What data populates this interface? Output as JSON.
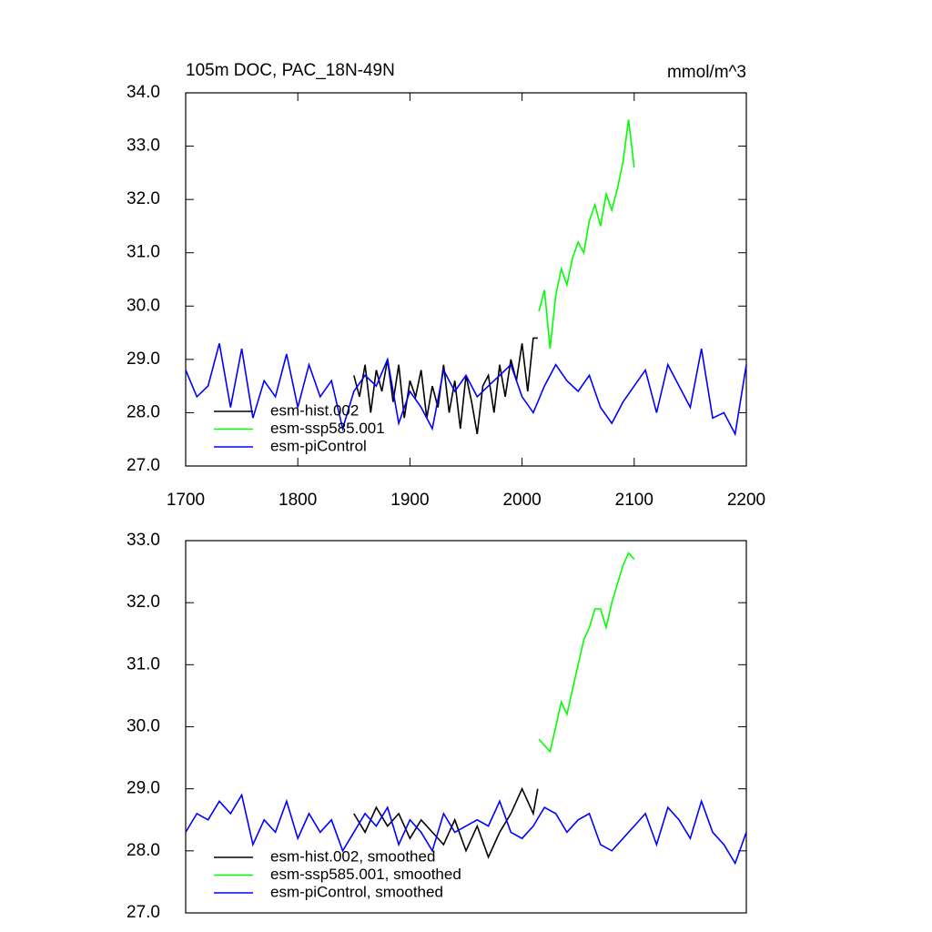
{
  "chart_data": [
    {
      "type": "line",
      "title": "105m DOC, PAC_18N-49N",
      "units": "mmol/m^3",
      "xlim": [
        1700,
        2200
      ],
      "xticks": [
        1700,
        1800,
        1900,
        2000,
        2100,
        2200
      ],
      "ylim": [
        27,
        34
      ],
      "yticks": [
        {
          "value": 27,
          "label": "27.0"
        },
        {
          "value": 28,
          "label": "28.0"
        },
        {
          "value": 29,
          "label": "29.0"
        },
        {
          "value": 30,
          "label": "30.0"
        },
        {
          "value": 31,
          "label": "31.0"
        },
        {
          "value": 32,
          "label": "32.0"
        },
        {
          "value": 33,
          "label": "33.0"
        },
        {
          "value": 34,
          "label": "34.0"
        }
      ],
      "series": [
        {
          "name": "esm-hist.002",
          "color": "#000000",
          "x": [
            1850,
            1855,
            1860,
            1865,
            1870,
            1875,
            1880,
            1885,
            1890,
            1895,
            1900,
            1905,
            1910,
            1915,
            1920,
            1925,
            1930,
            1935,
            1940,
            1945,
            1950,
            1955,
            1960,
            1965,
            1970,
            1975,
            1980,
            1985,
            1990,
            1995,
            2000,
            2005,
            2010,
            2014
          ],
          "values": [
            28.7,
            28.3,
            28.9,
            28.0,
            28.8,
            28.4,
            29.0,
            28.2,
            28.9,
            27.9,
            28.6,
            28.3,
            28.8,
            27.9,
            28.5,
            28.1,
            28.9,
            28.0,
            28.6,
            27.7,
            28.7,
            28.2,
            27.6,
            28.5,
            28.7,
            28.0,
            28.9,
            28.3,
            29.0,
            28.6,
            29.3,
            28.4,
            29.4,
            29.4
          ]
        },
        {
          "name": "esm-ssp585.001",
          "color": "#00ff00",
          "x": [
            2015,
            2020,
            2025,
            2030,
            2035,
            2040,
            2045,
            2050,
            2055,
            2060,
            2065,
            2070,
            2075,
            2080,
            2085,
            2090,
            2095,
            2100
          ],
          "values": [
            29.9,
            30.3,
            29.2,
            30.2,
            30.7,
            30.4,
            30.9,
            31.2,
            31.0,
            31.6,
            31.9,
            31.5,
            32.1,
            31.8,
            32.2,
            32.7,
            33.5,
            32.6
          ]
        },
        {
          "name": "esm-piControl",
          "color": "#0000ff",
          "x": [
            1700,
            1710,
            1720,
            1730,
            1740,
            1750,
            1760,
            1770,
            1780,
            1790,
            1800,
            1810,
            1820,
            1830,
            1840,
            1850,
            1860,
            1870,
            1880,
            1890,
            1900,
            1910,
            1920,
            1930,
            1940,
            1950,
            1960,
            1970,
            1980,
            1990,
            2000,
            2010,
            2020,
            2030,
            2040,
            2050,
            2060,
            2070,
            2080,
            2090,
            2100,
            2110,
            2120,
            2130,
            2140,
            2150,
            2160,
            2170,
            2180,
            2190,
            2200
          ],
          "values": [
            28.8,
            28.3,
            28.5,
            29.3,
            28.1,
            29.2,
            27.9,
            28.6,
            28.3,
            29.1,
            28.1,
            28.9,
            28.3,
            28.6,
            27.7,
            28.4,
            28.7,
            28.5,
            29.0,
            27.8,
            28.4,
            28.1,
            27.7,
            28.8,
            28.4,
            28.7,
            28.3,
            28.5,
            28.7,
            28.9,
            28.3,
            28.0,
            28.5,
            28.9,
            28.6,
            28.4,
            28.7,
            28.1,
            27.8,
            28.2,
            28.5,
            28.8,
            28.0,
            28.9,
            28.5,
            28.1,
            29.2,
            27.9,
            28.0,
            27.6,
            28.9
          ]
        }
      ]
    },
    {
      "type": "line",
      "xlim": [
        1700,
        2200
      ],
      "ylim": [
        27,
        33
      ],
      "yticks": [
        {
          "value": 27,
          "label": "27.0"
        },
        {
          "value": 28,
          "label": "28.0"
        },
        {
          "value": 29,
          "label": "29.0"
        },
        {
          "value": 30,
          "label": "30.0"
        },
        {
          "value": 31,
          "label": "31.0"
        },
        {
          "value": 32,
          "label": "32.0"
        },
        {
          "value": 33,
          "label": "33.0"
        }
      ],
      "series": [
        {
          "name": "esm-hist.002, smoothed",
          "color": "#000000",
          "x": [
            1850,
            1860,
            1870,
            1880,
            1890,
            1900,
            1910,
            1920,
            1930,
            1940,
            1950,
            1960,
            1970,
            1980,
            1990,
            2000,
            2010,
            2014
          ],
          "values": [
            28.6,
            28.3,
            28.7,
            28.4,
            28.6,
            28.2,
            28.5,
            28.3,
            28.1,
            28.5,
            28.0,
            28.4,
            27.9,
            28.3,
            28.6,
            29.0,
            28.6,
            29.0
          ]
        },
        {
          "name": "esm-ssp585.001, smoothed",
          "color": "#00ff00",
          "x": [
            2015,
            2020,
            2025,
            2030,
            2035,
            2040,
            2045,
            2050,
            2055,
            2060,
            2065,
            2070,
            2075,
            2080,
            2085,
            2090,
            2095,
            2100
          ],
          "values": [
            29.8,
            29.7,
            29.6,
            30.0,
            30.4,
            30.2,
            30.6,
            31.0,
            31.4,
            31.6,
            31.9,
            31.9,
            31.6,
            32.0,
            32.3,
            32.6,
            32.8,
            32.7
          ]
        },
        {
          "name": "esm-piControl, smoothed",
          "color": "#0000ff",
          "x": [
            1700,
            1710,
            1720,
            1730,
            1740,
            1750,
            1760,
            1770,
            1780,
            1790,
            1800,
            1810,
            1820,
            1830,
            1840,
            1850,
            1860,
            1870,
            1880,
            1890,
            1900,
            1910,
            1920,
            1930,
            1940,
            1950,
            1960,
            1970,
            1980,
            1990,
            2000,
            2010,
            2020,
            2030,
            2040,
            2050,
            2060,
            2070,
            2080,
            2090,
            2100,
            2110,
            2120,
            2130,
            2140,
            2150,
            2160,
            2170,
            2180,
            2190,
            2200
          ],
          "values": [
            28.3,
            28.6,
            28.5,
            28.8,
            28.6,
            28.9,
            28.1,
            28.5,
            28.3,
            28.8,
            28.2,
            28.6,
            28.3,
            28.5,
            28.0,
            28.3,
            28.6,
            28.4,
            28.7,
            28.1,
            28.5,
            28.3,
            28.0,
            28.6,
            28.3,
            28.4,
            28.5,
            28.4,
            28.8,
            28.3,
            28.2,
            28.4,
            28.7,
            28.6,
            28.3,
            28.5,
            28.6,
            28.1,
            28.0,
            28.2,
            28.4,
            28.6,
            28.1,
            28.7,
            28.5,
            28.2,
            28.8,
            28.3,
            28.1,
            27.8,
            28.3
          ]
        }
      ]
    }
  ]
}
